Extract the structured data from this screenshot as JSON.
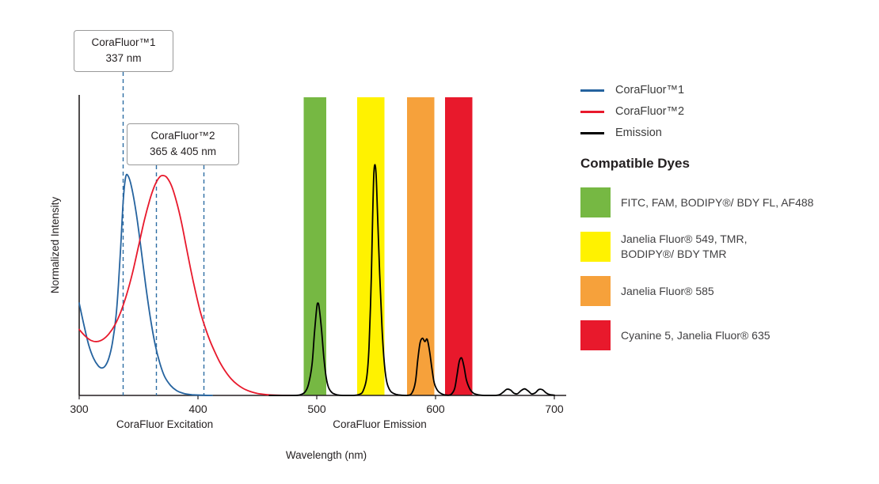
{
  "chart_data": {
    "type": "line",
    "title": "",
    "xlabel": "Wavelength (nm)",
    "ylabel": "Normalized Intensity",
    "xlim": [
      300,
      710
    ],
    "ylim": [
      0,
      1.35
    ],
    "grid": false,
    "x_ticks": [
      "300",
      "400",
      "500",
      "600",
      "700"
    ],
    "axis_sublabels": [
      {
        "text": "CoraFluor Excitation",
        "x": 372
      },
      {
        "text": "CoraFluor Emission",
        "x": 553
      }
    ],
    "bands": [
      {
        "name": "green",
        "color": "#76b843",
        "x0": 489,
        "x1": 508
      },
      {
        "name": "yellow",
        "color": "#fff200",
        "x0": 534,
        "x1": 557
      },
      {
        "name": "orange",
        "color": "#f6a13b",
        "x0": 576,
        "x1": 599
      },
      {
        "name": "red",
        "color": "#e8192c",
        "x0": 608,
        "x1": 631
      }
    ],
    "series": [
      {
        "name": "CoraFluor™1",
        "color": "#25639f",
        "points": [
          [
            300,
            0.42
          ],
          [
            304,
            0.32
          ],
          [
            308,
            0.23
          ],
          [
            312,
            0.17
          ],
          [
            316,
            0.135
          ],
          [
            319,
            0.125
          ],
          [
            322,
            0.135
          ],
          [
            325,
            0.17
          ],
          [
            328,
            0.24
          ],
          [
            331,
            0.36
          ],
          [
            333,
            0.5
          ],
          [
            335,
            0.68
          ],
          [
            337,
            0.88
          ],
          [
            339,
            0.99
          ],
          [
            341,
            1.0
          ],
          [
            344,
            0.95
          ],
          [
            348,
            0.83
          ],
          [
            352,
            0.67
          ],
          [
            356,
            0.5
          ],
          [
            360,
            0.35
          ],
          [
            364,
            0.23
          ],
          [
            368,
            0.145
          ],
          [
            372,
            0.085
          ],
          [
            377,
            0.045
          ],
          [
            382,
            0.022
          ],
          [
            388,
            0.009
          ],
          [
            395,
            0.003
          ],
          [
            403,
            0.001
          ],
          [
            412,
            0
          ]
        ]
      },
      {
        "name": "CoraFluor™2",
        "color": "#e8192c",
        "points": [
          [
            300,
            0.3
          ],
          [
            305,
            0.27
          ],
          [
            310,
            0.25
          ],
          [
            315,
            0.245
          ],
          [
            320,
            0.255
          ],
          [
            325,
            0.28
          ],
          [
            330,
            0.32
          ],
          [
            335,
            0.38
          ],
          [
            340,
            0.46
          ],
          [
            345,
            0.56
          ],
          [
            350,
            0.68
          ],
          [
            355,
            0.8
          ],
          [
            360,
            0.9
          ],
          [
            364,
            0.96
          ],
          [
            368,
            0.995
          ],
          [
            371,
            1.0
          ],
          [
            374,
            0.99
          ],
          [
            378,
            0.95
          ],
          [
            382,
            0.88
          ],
          [
            386,
            0.79
          ],
          [
            390,
            0.68
          ],
          [
            394,
            0.57
          ],
          [
            398,
            0.47
          ],
          [
            402,
            0.38
          ],
          [
            406,
            0.31
          ],
          [
            410,
            0.25
          ],
          [
            414,
            0.2
          ],
          [
            418,
            0.155
          ],
          [
            423,
            0.11
          ],
          [
            428,
            0.075
          ],
          [
            433,
            0.05
          ],
          [
            438,
            0.032
          ],
          [
            444,
            0.018
          ],
          [
            450,
            0.009
          ],
          [
            457,
            0.004
          ],
          [
            465,
            0.001
          ],
          [
            478,
            0
          ]
        ]
      },
      {
        "name": "Emission",
        "color": "#000000",
        "points": [
          [
            460,
            0
          ],
          [
            480,
            0
          ],
          [
            486,
            0.003
          ],
          [
            490,
            0.015
          ],
          [
            493,
            0.05
          ],
          [
            496,
            0.14
          ],
          [
            498,
            0.28
          ],
          [
            500,
            0.4
          ],
          [
            501,
            0.42
          ],
          [
            502,
            0.4
          ],
          [
            504,
            0.3
          ],
          [
            506,
            0.17
          ],
          [
            508,
            0.08
          ],
          [
            510,
            0.035
          ],
          [
            513,
            0.012
          ],
          [
            517,
            0.003
          ],
          [
            522,
            0
          ],
          [
            531,
            0
          ],
          [
            536,
            0.005
          ],
          [
            539,
            0.02
          ],
          [
            542,
            0.08
          ],
          [
            544,
            0.22
          ],
          [
            546,
            0.55
          ],
          [
            547,
            0.8
          ],
          [
            548,
            1.0
          ],
          [
            549,
            1.05
          ],
          [
            550,
            1.0
          ],
          [
            551,
            0.85
          ],
          [
            553,
            0.55
          ],
          [
            555,
            0.3
          ],
          [
            557,
            0.14
          ],
          [
            559,
            0.06
          ],
          [
            562,
            0.02
          ],
          [
            566,
            0.006
          ],
          [
            571,
            0.001
          ],
          [
            576,
            0
          ],
          [
            580,
            0.01
          ],
          [
            583,
            0.06
          ],
          [
            585,
            0.16
          ],
          [
            587,
            0.24
          ],
          [
            589,
            0.26
          ],
          [
            591,
            0.245
          ],
          [
            593,
            0.255
          ],
          [
            595,
            0.2
          ],
          [
            597,
            0.12
          ],
          [
            599,
            0.055
          ],
          [
            602,
            0.02
          ],
          [
            606,
            0.005
          ],
          [
            610,
            0.001
          ],
          [
            613,
            0.004
          ],
          [
            616,
            0.03
          ],
          [
            618,
            0.09
          ],
          [
            620,
            0.155
          ],
          [
            622,
            0.17
          ],
          [
            624,
            0.13
          ],
          [
            626,
            0.07
          ],
          [
            629,
            0.028
          ],
          [
            632,
            0.01
          ],
          [
            636,
            0.003
          ],
          [
            641,
            0
          ],
          [
            650,
            0
          ],
          [
            654,
            0.004
          ],
          [
            657,
            0.015
          ],
          [
            660,
            0.028
          ],
          [
            663,
            0.025
          ],
          [
            666,
            0.01
          ],
          [
            669,
            0.008
          ],
          [
            672,
            0.022
          ],
          [
            675,
            0.03
          ],
          [
            678,
            0.02
          ],
          [
            681,
            0.007
          ],
          [
            684,
            0.012
          ],
          [
            687,
            0.027
          ],
          [
            690,
            0.026
          ],
          [
            693,
            0.012
          ],
          [
            696,
            0.004
          ],
          [
            700,
            0.001
          ]
        ]
      }
    ],
    "annotations": [
      {
        "title": "CoraFluor™1",
        "value": "337 nm",
        "lines_x": [
          337
        ],
        "line_color": "#2e6da4"
      },
      {
        "title": "CoraFluor™2",
        "value": "365 & 405 nm",
        "lines_x": [
          365,
          405
        ],
        "line_color": "#2e6da4"
      }
    ]
  },
  "legend": {
    "items": [
      {
        "label": "CoraFluor™1",
        "color": "#25639f"
      },
      {
        "label": "CoraFluor™2",
        "color": "#e8192c"
      },
      {
        "label": "Emission",
        "color": "#000000"
      }
    ],
    "compatible_dyes_heading": "Compatible Dyes"
  },
  "dyes": {
    "items": [
      {
        "color": "#76b843",
        "label": "FITC, FAM, BODIPY®/ BDY FL, AF488"
      },
      {
        "color": "#fff200",
        "label": "Janelia Fluor® 549, TMR,\nBODIPY®/ BDY TMR"
      },
      {
        "color": "#f6a13b",
        "label": "Janelia Fluor® 585"
      },
      {
        "color": "#e8192c",
        "label": "Cyanine 5, Janelia Fluor® 635"
      }
    ]
  }
}
